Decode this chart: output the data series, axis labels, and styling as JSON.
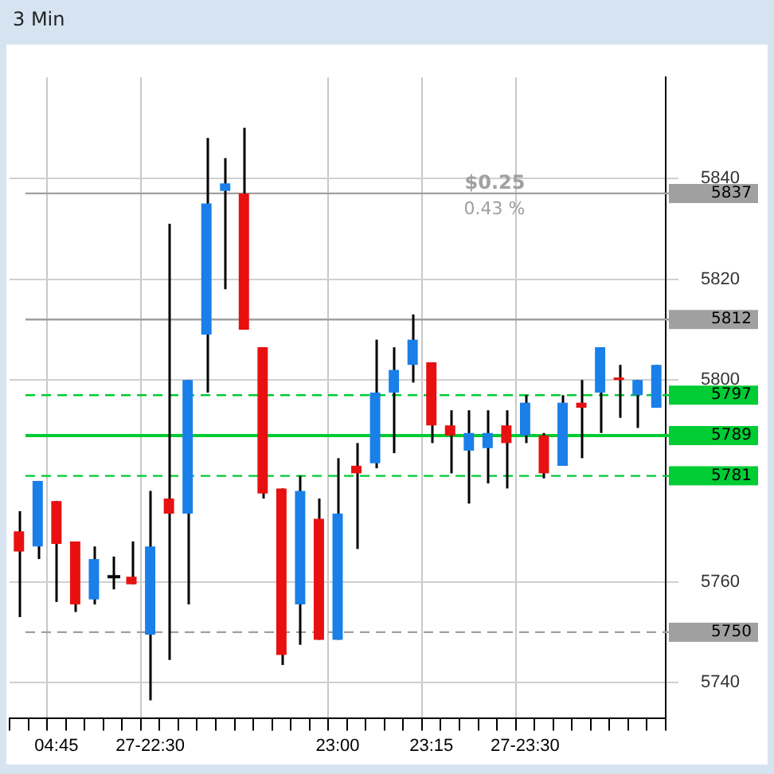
{
  "chart_data": {
    "type": "candlestick",
    "title": "3 Min",
    "categories": [
      null,
      null,
      "04:45",
      null,
      null,
      null,
      null,
      "27-22:30",
      null,
      null,
      null,
      null,
      null,
      null,
      null,
      null,
      null,
      "23:00",
      null,
      null,
      null,
      null,
      "23:15",
      null,
      null,
      null,
      null,
      "27-23:30",
      null,
      null,
      null,
      null,
      null,
      null,
      null
    ],
    "ohlc": [
      [
        5770,
        5774,
        5753,
        5766
      ],
      [
        5767,
        5780,
        5764.5,
        5780
      ],
      [
        5776,
        5776,
        5756,
        5767.5
      ],
      [
        5768,
        5768,
        5754,
        5755.5
      ],
      [
        5756.5,
        5767,
        5755.5,
        5764.5
      ],
      [
        5761,
        5765,
        5758.5,
        5761
      ],
      [
        5761,
        5768,
        5759.5,
        5759.5
      ],
      [
        5749.5,
        5778,
        5736.5,
        5767
      ],
      [
        5776.5,
        5831,
        5744.5,
        5773.5
      ],
      [
        5773.5,
        5800,
        5755.5,
        5800
      ],
      [
        5809,
        5848,
        5797.5,
        5835
      ],
      [
        5837.5,
        5844,
        5818,
        5839
      ],
      [
        5837,
        5850,
        5810,
        5810
      ],
      [
        5806.5,
        5806.5,
        5776.5,
        5777.5
      ],
      [
        5778.5,
        5778.5,
        5743.5,
        5745.5
      ],
      [
        5755.5,
        5781,
        5747.5,
        5778
      ],
      [
        5772.5,
        5776.5,
        5748.5,
        5748.5
      ],
      [
        5748.5,
        5784.5,
        5748.5,
        5773.5
      ],
      [
        5783,
        5787.5,
        5766.5,
        5781.5
      ],
      [
        5783.5,
        5808,
        5782.5,
        5797.5
      ],
      [
        5797.5,
        5806.5,
        5785.5,
        5802
      ],
      [
        5803,
        5813,
        5799.5,
        5808
      ],
      [
        5803.5,
        5803.5,
        5787.5,
        5791
      ],
      [
        5791,
        5794,
        5781.5,
        5789
      ],
      [
        5786,
        5794,
        5775.5,
        5789.5
      ],
      [
        5786.5,
        5794,
        5779.5,
        5789.5
      ],
      [
        5791,
        5794,
        5778.5,
        5787.5
      ],
      [
        5789,
        5797,
        5787.5,
        5795.5
      ],
      [
        5789,
        5789.5,
        5780.5,
        5781.5
      ],
      [
        5783,
        5797,
        5783,
        5795.5
      ],
      [
        5795.5,
        5800,
        5784.5,
        5794.5
      ],
      [
        5797.5,
        5806.5,
        5789.5,
        5806.5
      ],
      [
        5800.5,
        5803,
        5792.5,
        5800
      ],
      [
        5797,
        5800,
        5790.5,
        5800
      ],
      [
        5794.5,
        5803,
        5794.5,
        5803
      ]
    ],
    "colors": [
      "#e81010",
      "#1a7fe8",
      "#e81010",
      "#e81010",
      "#1a7fe8",
      "#000000",
      "#e81010",
      "#1a7fe8",
      "#e81010",
      "#1a7fe8",
      "#1a7fe8",
      "#1a7fe8",
      "#e81010",
      "#e81010",
      "#e81010",
      "#1a7fe8",
      "#e81010",
      "#1a7fe8",
      "#e81010",
      "#1a7fe8",
      "#1a7fe8",
      "#1a7fe8",
      "#e81010",
      "#e81010",
      "#1a7fe8",
      "#1a7fe8",
      "#e81010",
      "#1a7fe8",
      "#e81010",
      "#1a7fe8",
      "#e81010",
      "#1a7fe8",
      "#e81010",
      "#1a7fe8",
      "#1a7fe8"
    ],
    "ylim": [
      5733,
      5860
    ],
    "yticks": [
      5740,
      5760,
      5800,
      5820,
      5840
    ],
    "ref_lines": [
      {
        "axis": "y",
        "value": 5837,
        "label": "5837",
        "color": "#a0a0a0",
        "line_style": "solid"
      },
      {
        "axis": "y",
        "value": 5812,
        "label": "5812",
        "color": "#a0a0a0",
        "line_style": "solid"
      },
      {
        "axis": "y",
        "value": 5797,
        "label": "5797",
        "color": "#00cc33",
        "line_style": "dashed"
      },
      {
        "axis": "y",
        "value": 5789,
        "label": "5789",
        "color": "#00cc33",
        "line_style": "solid"
      },
      {
        "axis": "y",
        "value": 5781,
        "label": "5781",
        "color": "#00cc33",
        "line_style": "dashed"
      },
      {
        "axis": "y",
        "value": 5750,
        "label": "5750",
        "color": "#a0a0a0",
        "line_style": "dashed"
      }
    ],
    "annotations": [
      "$0.25",
      "0.43 %"
    ],
    "grid": true,
    "legend": false
  }
}
